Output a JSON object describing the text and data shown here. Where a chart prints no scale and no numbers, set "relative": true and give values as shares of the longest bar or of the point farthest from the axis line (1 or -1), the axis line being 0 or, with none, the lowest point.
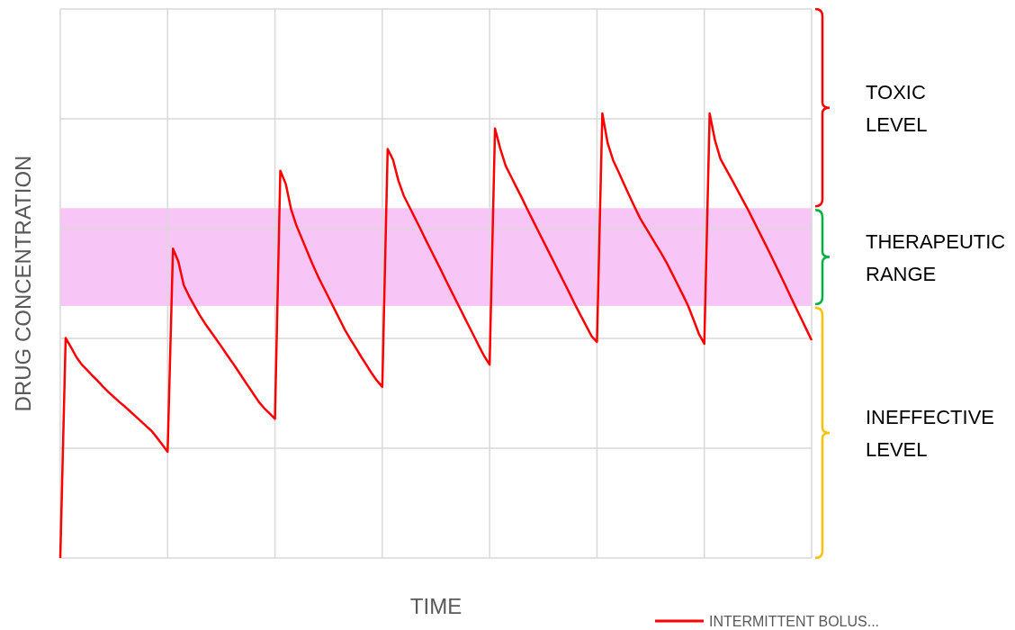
{
  "chart_data": {
    "type": "line",
    "xlabel": "TIME",
    "ylabel": "DRUG CONCENTRATION",
    "relative": true,
    "grid": true,
    "legend": "bottom right",
    "categories": [
      null,
      null,
      null,
      null,
      null,
      null,
      null,
      null,
      null,
      null,
      null,
      null,
      null,
      null,
      null,
      null,
      null,
      null,
      null,
      null,
      null,
      null,
      null,
      null,
      null,
      null,
      null,
      null,
      null,
      null,
      null,
      null,
      null,
      null,
      null,
      null,
      null,
      null,
      null,
      null,
      null,
      null,
      null,
      null,
      null,
      null,
      null,
      null,
      null,
      null,
      null,
      null,
      null,
      null,
      null,
      null,
      null,
      null,
      null,
      null,
      null,
      null,
      null,
      null,
      null,
      null,
      null,
      null,
      null,
      null,
      null,
      null,
      null,
      null,
      null,
      null,
      null,
      null,
      null,
      null,
      null,
      null,
      null,
      null,
      null,
      null,
      null,
      null,
      null,
      null,
      null,
      null,
      null,
      null,
      null,
      null,
      null,
      null,
      null,
      null,
      null,
      null,
      null,
      null,
      null,
      null,
      null,
      null,
      null,
      null,
      null,
      null,
      null,
      null,
      null,
      null,
      null,
      null,
      null,
      null,
      null,
      null,
      null,
      null,
      null,
      null,
      null,
      null,
      null,
      null,
      null,
      null,
      null,
      null,
      null,
      null,
      null,
      null,
      null,
      null,
      null
    ],
    "bands": [
      {
        "axis": "y",
        "from": 0.567,
        "to": 0.787,
        "label": null,
        "color": "#f7c6f7"
      }
    ],
    "annotations": [
      "TOXIC LEVEL",
      "THERAPEUTIC RANGE",
      "INEFFECTIVE LEVEL"
    ],
    "series": [
      {
        "name": "INTERMITTENT BOLUS...",
        "color": "#ff0000",
        "values": [
          0,
          0.495,
          0.474,
          0.452,
          0.435,
          0.423,
          0.41,
          0.398,
          0.385,
          0.373,
          0.362,
          0.351,
          0.341,
          0.33,
          0.319,
          0.308,
          0.297,
          0.286,
          0.271,
          0.255,
          0.239,
          0.696,
          0.667,
          0.614,
          0.589,
          0.567,
          0.546,
          0.527,
          0.51,
          0.493,
          0.476,
          0.458,
          0.441,
          0.423,
          0.405,
          0.387,
          0.369,
          0.351,
          0.337,
          0.325,
          0.313,
          0.871,
          0.842,
          0.785,
          0.748,
          0.719,
          0.69,
          0.661,
          0.634,
          0.61,
          0.586,
          0.562,
          0.538,
          0.514,
          0.493,
          0.474,
          0.454,
          0.435,
          0.416,
          0.399,
          0.385,
          0.92,
          0.896,
          0.849,
          0.815,
          0.791,
          0.767,
          0.743,
          0.718,
          0.694,
          0.67,
          0.646,
          0.621,
          0.597,
          0.573,
          0.549,
          0.525,
          0.501,
          0.477,
          0.454,
          0.435,
          0.966,
          0.92,
          0.882,
          0.858,
          0.834,
          0.81,
          0.785,
          0.761,
          0.737,
          0.713,
          0.689,
          0.665,
          0.641,
          0.617,
          0.593,
          0.568,
          0.545,
          0.522,
          0.499,
          0.486,
          1,
          0.933,
          0.895,
          0.869,
          0.842,
          0.816,
          0.79,
          0.765,
          0.745,
          0.725,
          0.705,
          0.685,
          0.664,
          0.64,
          0.616,
          0.592,
          0.567,
          0.536,
          0.504,
          0.482,
          1,
          0.939,
          0.898,
          0.876,
          0.854,
          0.832,
          0.809,
          0.787,
          0.763,
          0.739,
          0.715,
          0.691,
          0.666,
          0.641,
          0.616,
          0.59,
          0.565,
          0.54,
          0.515,
          0.49
        ]
      }
    ]
  }
}
